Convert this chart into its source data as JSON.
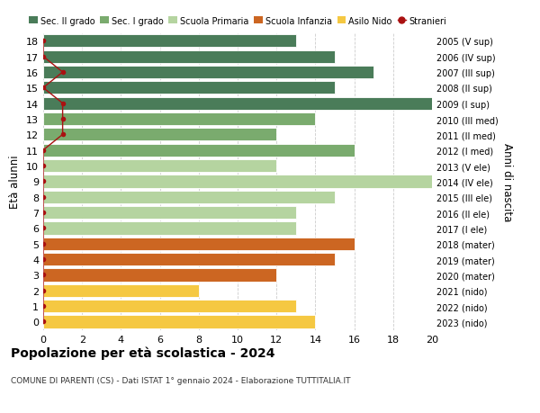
{
  "ages": [
    18,
    17,
    16,
    15,
    14,
    13,
    12,
    11,
    10,
    9,
    8,
    7,
    6,
    5,
    4,
    3,
    2,
    1,
    0
  ],
  "years": [
    "2005 (V sup)",
    "2006 (IV sup)",
    "2007 (III sup)",
    "2008 (II sup)",
    "2009 (I sup)",
    "2010 (III med)",
    "2011 (II med)",
    "2012 (I med)",
    "2013 (V ele)",
    "2014 (IV ele)",
    "2015 (III ele)",
    "2016 (II ele)",
    "2017 (I ele)",
    "2018 (mater)",
    "2019 (mater)",
    "2020 (mater)",
    "2021 (nido)",
    "2022 (nido)",
    "2023 (nido)"
  ],
  "bar_values": [
    13,
    15,
    17,
    15,
    20,
    14,
    12,
    16,
    12,
    20,
    15,
    13,
    13,
    16,
    15,
    12,
    8,
    13,
    14
  ],
  "bar_colors": [
    "#4a7c59",
    "#4a7c59",
    "#4a7c59",
    "#4a7c59",
    "#4a7c59",
    "#7aab6e",
    "#7aab6e",
    "#7aab6e",
    "#b5d4a0",
    "#b5d4a0",
    "#b5d4a0",
    "#b5d4a0",
    "#b5d4a0",
    "#cc6622",
    "#cc6622",
    "#cc6622",
    "#f5c842",
    "#f5c842",
    "#f5c842"
  ],
  "stranieri_x": [
    0,
    0,
    1,
    0,
    1,
    1,
    1,
    0,
    0,
    0,
    0,
    0,
    0,
    0,
    0,
    0,
    0,
    0,
    0
  ],
  "stranieri_color": "#aa1111",
  "legend_labels": [
    "Sec. II grado",
    "Sec. I grado",
    "Scuola Primaria",
    "Scuola Infanzia",
    "Asilo Nido",
    "Stranieri"
  ],
  "legend_colors": [
    "#4a7c59",
    "#7aab6e",
    "#b5d4a0",
    "#cc6622",
    "#f5c842",
    "#aa1111"
  ],
  "ylabel": "Età alunni",
  "right_label": "Anni di nascita",
  "title": "Popolazione per età scolastica - 2024",
  "subtitle": "COMUNE DI PARENTI (CS) - Dati ISTAT 1° gennaio 2024 - Elaborazione TUTTITALIA.IT",
  "xlim": [
    0,
    20
  ],
  "xticks": [
    0,
    2,
    4,
    6,
    8,
    10,
    12,
    14,
    16,
    18,
    20
  ],
  "background_color": "#ffffff",
  "bar_height": 0.82
}
